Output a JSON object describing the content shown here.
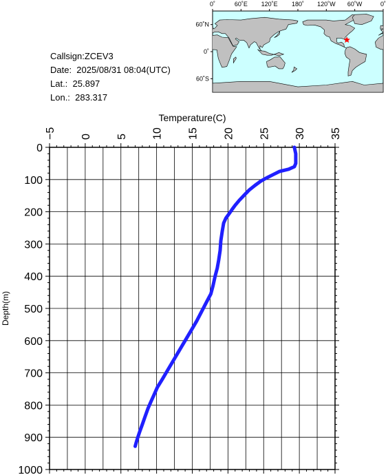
{
  "info": {
    "callsign": "Callsign:ZCEV3",
    "date": "Date:  2025/08/31 08:04(UTC)",
    "lat": "Lat.:  25.897",
    "lon": "Lon.:  283.317"
  },
  "map": {
    "top_labels": [
      "0˚",
      "60˚E",
      "120˚E",
      "180˚",
      "120˚W",
      "60˚W",
      "0˚"
    ],
    "left_labels": [
      "60˚N",
      "0˚",
      "60˚S"
    ],
    "ocean_color": "#ccffff",
    "land_color": "#c0c0c0",
    "marker": {
      "lon": 283.317,
      "lat": 25.897,
      "color": "#ff0000"
    }
  },
  "chart_data": {
    "type": "line",
    "xlabel": "Temperature(C)",
    "ylabel": "Depth(m)",
    "xlim": [
      -5,
      35
    ],
    "ylim": [
      0,
      1000
    ],
    "y_inverted": true,
    "x_axis_position": "top",
    "xticks": [
      -5,
      0,
      5,
      10,
      15,
      20,
      25,
      30,
      35
    ],
    "yticks": [
      0,
      100,
      200,
      300,
      400,
      500,
      600,
      700,
      800,
      900,
      1000
    ],
    "grid": true,
    "series": [
      {
        "color": "#2020ff",
        "points": [
          [
            29.3,
            0
          ],
          [
            29.4,
            10
          ],
          [
            29.5,
            20
          ],
          [
            29.5,
            30
          ],
          [
            29.5,
            40
          ],
          [
            29.5,
            50
          ],
          [
            29.3,
            60
          ],
          [
            28.5,
            68
          ],
          [
            27.2,
            75
          ],
          [
            26.3,
            85
          ],
          [
            25.4,
            95
          ],
          [
            24.6,
            105
          ],
          [
            23.8,
            118
          ],
          [
            23.0,
            132
          ],
          [
            22.3,
            148
          ],
          [
            21.6,
            164
          ],
          [
            21.0,
            180
          ],
          [
            20.6,
            192
          ],
          [
            20.2,
            205
          ],
          [
            19.7,
            220
          ],
          [
            19.4,
            235
          ],
          [
            19.2,
            260
          ],
          [
            19.0,
            290
          ],
          [
            18.9,
            320
          ],
          [
            18.7,
            350
          ],
          [
            18.5,
            375
          ],
          [
            18.2,
            400
          ],
          [
            17.9,
            430
          ],
          [
            17.6,
            455
          ],
          [
            17.0,
            480
          ],
          [
            16.3,
            510
          ],
          [
            15.6,
            540
          ],
          [
            14.8,
            570
          ],
          [
            14.0,
            600
          ],
          [
            13.2,
            630
          ],
          [
            12.4,
            660
          ],
          [
            11.6,
            690
          ],
          [
            10.8,
            720
          ],
          [
            10.1,
            745
          ],
          [
            9.6,
            770
          ],
          [
            9.2,
            790
          ],
          [
            8.8,
            810
          ],
          [
            8.4,
            835
          ],
          [
            8.0,
            860
          ],
          [
            7.6,
            885
          ],
          [
            7.3,
            905
          ],
          [
            7.1,
            920
          ],
          [
            7.0,
            928
          ]
        ]
      }
    ]
  }
}
